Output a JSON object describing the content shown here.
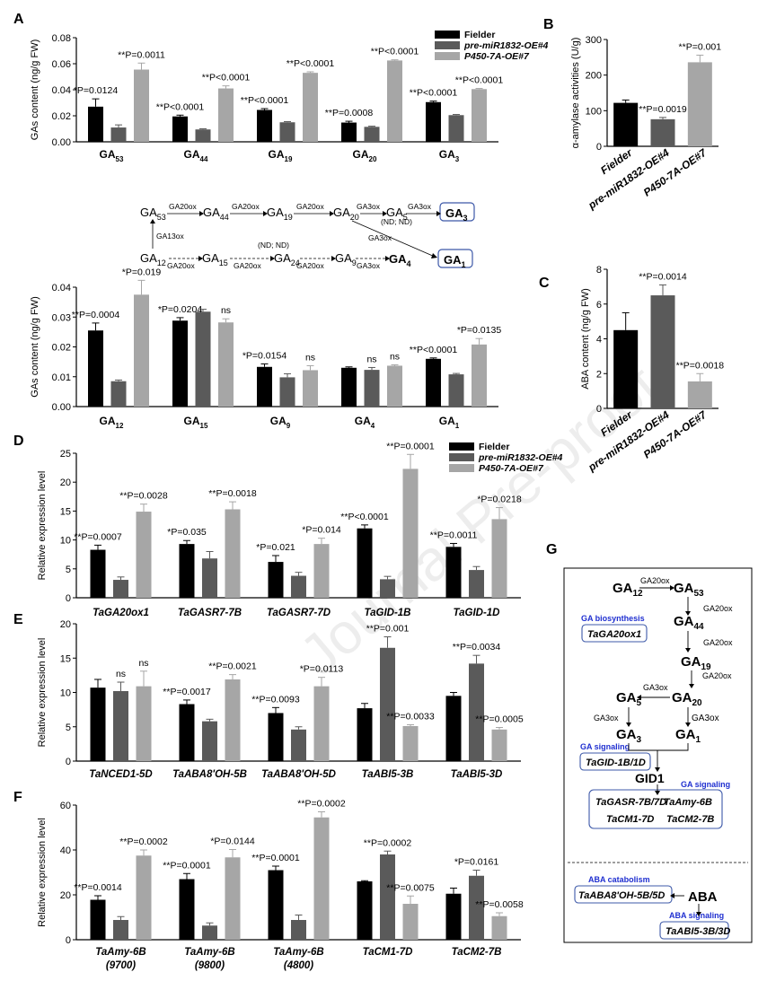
{
  "watermark": "Journal Pre-proof",
  "colors": {
    "fielder": "#000000",
    "mir": "#5a5a5a",
    "p450": "#a6a6a6",
    "abaBox": "#3c58a8",
    "gaText": "#1f2fd0"
  },
  "legend": [
    "Fielder",
    "pre-miR1832-OE#4",
    "P450-7A-OE#7"
  ],
  "chart_data": [
    {
      "id": "A1",
      "panel": "A",
      "type": "bar",
      "title": "",
      "ylabel": "GAs content (ng/g FW)",
      "xlabel": "",
      "ylim": [
        0,
        0.08
      ],
      "yticks": [
        0.0,
        0.02,
        0.04,
        0.06,
        0.08
      ],
      "ytick_labels": [
        "0.00",
        "0.02",
        "0.04",
        "0.06",
        "0.08"
      ],
      "categories": [
        [
          "GA",
          "53"
        ],
        [
          "GA",
          "44"
        ],
        [
          "GA",
          "19"
        ],
        [
          "GA",
          "20"
        ],
        [
          "GA",
          "3"
        ]
      ],
      "series": [
        {
          "name": "Fielder",
          "values": [
            0.027,
            0.0195,
            0.0245,
            0.0148,
            0.0305
          ],
          "errors": [
            0.006,
            0.001,
            0.001,
            0.001,
            0.0008
          ]
        },
        {
          "name": "pre-miR1832-OE#4",
          "values": [
            0.011,
            0.0095,
            0.015,
            0.0115,
            0.0205
          ],
          "errors": [
            0.002,
            0.0005,
            0.0005,
            0.0005,
            0.0005
          ]
        },
        {
          "name": "P450-7A-OE#7",
          "values": [
            0.0555,
            0.041,
            0.053,
            0.0625,
            0.0405
          ],
          "errors": [
            0.005,
            0.002,
            0.0008,
            0.0005,
            0.0005
          ]
        }
      ],
      "annotations": [
        {
          "cat": 0,
          "series": 0,
          "text": "*P=0.0124"
        },
        {
          "cat": 0,
          "series": 2,
          "text": "**P=0.0011"
        },
        {
          "cat": 1,
          "series": 0,
          "text": "**P<0.0001"
        },
        {
          "cat": 1,
          "series": 2,
          "text": "**P<0.0001"
        },
        {
          "cat": 2,
          "series": 0,
          "text": "**P<0.0001"
        },
        {
          "cat": 2,
          "series": 2,
          "text": "**P<0.0001"
        },
        {
          "cat": 3,
          "series": 0,
          "text": "**P=0.0008"
        },
        {
          "cat": 3,
          "series": 2,
          "text": "**P<0.0001"
        },
        {
          "cat": 4,
          "series": 0,
          "text": "**P<0.0001"
        },
        {
          "cat": 4,
          "series": 2,
          "text": "**P<0.0001"
        }
      ]
    },
    {
      "id": "A2",
      "panel": "",
      "type": "bar",
      "title": "",
      "ylabel": "GAs content (ng/g FW)",
      "xlabel": "",
      "ylim": [
        0,
        0.04
      ],
      "yticks": [
        0.0,
        0.01,
        0.02,
        0.03,
        0.04
      ],
      "ytick_labels": [
        "0.00",
        "0.01",
        "0.02",
        "0.03",
        "0.04"
      ],
      "categories": [
        [
          "GA",
          "12"
        ],
        [
          "GA",
          "15"
        ],
        [
          "GA",
          "9"
        ],
        [
          "GA",
          "4"
        ],
        [
          "GA",
          "1"
        ]
      ],
      "series": [
        {
          "name": "Fielder",
          "values": [
            0.0255,
            0.0288,
            0.0133,
            0.013,
            0.016
          ],
          "errors": [
            0.0025,
            0.001,
            0.001,
            0.0003,
            0.0003
          ]
        },
        {
          "name": "pre-miR1832-OE#4",
          "values": [
            0.0085,
            0.0318,
            0.0098,
            0.0123,
            0.0108
          ],
          "errors": [
            0.0004,
            0.0008,
            0.0012,
            0.0008,
            0.0003
          ]
        },
        {
          "name": "P450-7A-OE#7",
          "values": [
            0.0375,
            0.0282,
            0.0122,
            0.0137,
            0.0208
          ],
          "errors": [
            0.0048,
            0.0012,
            0.0015,
            0.0003,
            0.002
          ]
        }
      ],
      "annotations": [
        {
          "cat": 0,
          "series": 0,
          "text": "**P=0.0004"
        },
        {
          "cat": 0,
          "series": 2,
          "text": "*P=0.019"
        },
        {
          "cat": 1,
          "series": 0,
          "text": "*P=0.0204"
        },
        {
          "cat": 1,
          "series": 2,
          "text": "ns"
        },
        {
          "cat": 2,
          "series": 0,
          "text": "*P=0.0154"
        },
        {
          "cat": 2,
          "series": 2,
          "text": "ns"
        },
        {
          "cat": 3,
          "series": 1,
          "text": "ns"
        },
        {
          "cat": 3,
          "series": 2,
          "text": "ns"
        },
        {
          "cat": 4,
          "series": 0,
          "text": "**P<0.0001"
        },
        {
          "cat": 4,
          "series": 2,
          "text": "*P=0.0135"
        }
      ]
    },
    {
      "id": "B",
      "panel": "B",
      "type": "bar",
      "title": "",
      "ylabel": "α-amylase activities (U/g)",
      "xlabel": "",
      "ylim": [
        0,
        300
      ],
      "yticks": [
        0,
        100,
        200,
        300
      ],
      "ytick_labels": [
        "0",
        "100",
        "200",
        "300"
      ],
      "categories": [
        [
          "Fielder",
          ""
        ],
        [
          "pre-miR1832-OE#4",
          ""
        ],
        [
          "P450-7A-OE#7",
          ""
        ]
      ],
      "series": [
        {
          "name": "values",
          "values": [
            122,
            76,
            236
          ],
          "errors": [
            8,
            5,
            20
          ]
        }
      ],
      "annotations": [
        {
          "cat": 1,
          "series": 0,
          "text": "**P=0.0019"
        },
        {
          "cat": 2,
          "series": 0,
          "text": "**P=0.001"
        }
      ]
    },
    {
      "id": "C",
      "panel": "C",
      "type": "bar",
      "title": "",
      "ylabel": "ABA content (ng/g FW)",
      "xlabel": "",
      "ylim": [
        0,
        8
      ],
      "yticks": [
        0,
        2,
        4,
        6,
        8
      ],
      "ytick_labels": [
        "0",
        "2",
        "4",
        "6",
        "8"
      ],
      "categories": [
        [
          "Fielder",
          ""
        ],
        [
          "pre-miR1832-OE#4",
          ""
        ],
        [
          "P450-7A-OE#7",
          ""
        ]
      ],
      "series": [
        {
          "name": "values",
          "values": [
            4.5,
            6.5,
            1.55
          ],
          "errors": [
            1.0,
            0.6,
            0.45
          ]
        }
      ],
      "annotations": [
        {
          "cat": 1,
          "series": 0,
          "text": "**P=0.0014"
        },
        {
          "cat": 2,
          "series": 0,
          "text": "**P=0.0018"
        }
      ]
    },
    {
      "id": "D",
      "panel": "D",
      "type": "bar",
      "title": "",
      "ylabel": "Relative expression level",
      "xlabel": "",
      "ylim": [
        0,
        25
      ],
      "yticks": [
        0,
        5,
        10,
        15,
        20,
        25
      ],
      "ytick_labels": [
        "0",
        "5",
        "10",
        "15",
        "20",
        "25"
      ],
      "categories": [
        [
          "TaGA20ox1",
          ""
        ],
        [
          "TaGASR7-7B",
          ""
        ],
        [
          "TaGASR7-7D",
          ""
        ],
        [
          "TaGID-1B",
          ""
        ],
        [
          "TaGID-1D",
          ""
        ]
      ],
      "series": [
        {
          "name": "Fielder",
          "values": [
            8.3,
            9.3,
            6.2,
            12.0,
            8.8
          ],
          "errors": [
            0.8,
            0.6,
            1.1,
            0.6,
            0.6
          ]
        },
        {
          "name": "pre-miR1832-OE#4",
          "values": [
            3.1,
            6.8,
            3.8,
            3.2,
            4.8
          ],
          "errors": [
            0.5,
            1.2,
            0.6,
            0.5,
            0.6
          ]
        },
        {
          "name": "P450-7A-OE#7",
          "values": [
            14.9,
            15.3,
            9.3,
            22.3,
            13.6
          ],
          "errors": [
            1.3,
            1.3,
            1.0,
            2.5,
            2.0
          ]
        }
      ],
      "annotations": [
        {
          "cat": 0,
          "series": 0,
          "text": "**P=0.0007"
        },
        {
          "cat": 0,
          "series": 2,
          "text": "**P=0.0028"
        },
        {
          "cat": 1,
          "series": 0,
          "text": "*P=0.035"
        },
        {
          "cat": 1,
          "series": 2,
          "text": "**P=0.0018"
        },
        {
          "cat": 2,
          "series": 0,
          "text": "*P=0.021"
        },
        {
          "cat": 2,
          "series": 2,
          "text": "*P=0.014"
        },
        {
          "cat": 3,
          "series": 0,
          "text": "**P<0.0001"
        },
        {
          "cat": 3,
          "series": 2,
          "text": "**P=0.0001"
        },
        {
          "cat": 4,
          "series": 0,
          "text": "**P=0.0011"
        },
        {
          "cat": 4,
          "series": 2,
          "text": "*P=0.0218"
        }
      ]
    },
    {
      "id": "E",
      "panel": "E",
      "type": "bar",
      "title": "",
      "ylabel": "Relative expression level",
      "xlabel": "",
      "ylim": [
        0,
        20
      ],
      "yticks": [
        0,
        5,
        10,
        15,
        20
      ],
      "ytick_labels": [
        "0",
        "5",
        "10",
        "15",
        "20"
      ],
      "categories": [
        [
          "TaNCED1-5D",
          ""
        ],
        [
          "TaABA8'OH-5B",
          ""
        ],
        [
          "TaABA8'OH-5D",
          ""
        ],
        [
          "TaABI5-3B",
          ""
        ],
        [
          "TaABI5-3D",
          ""
        ]
      ],
      "series": [
        {
          "name": "Fielder",
          "values": [
            10.7,
            8.3,
            7.0,
            7.7,
            9.5
          ],
          "errors": [
            1.2,
            0.6,
            0.8,
            0.7,
            0.5
          ]
        },
        {
          "name": "pre-miR1832-OE#4",
          "values": [
            10.2,
            5.8,
            4.6,
            16.5,
            14.2
          ],
          "errors": [
            1.3,
            0.3,
            0.4,
            1.6,
            1.2
          ]
        },
        {
          "name": "P450-7A-OE#7",
          "values": [
            10.9,
            11.9,
            10.9,
            5.1,
            4.6
          ],
          "errors": [
            2.2,
            0.7,
            1.3,
            0.2,
            0.3
          ]
        }
      ],
      "annotations": [
        {
          "cat": 0,
          "series": 1,
          "text": "ns"
        },
        {
          "cat": 0,
          "series": 2,
          "text": "ns"
        },
        {
          "cat": 1,
          "series": 0,
          "text": "**P=0.0017"
        },
        {
          "cat": 1,
          "series": 2,
          "text": "**P=0.0021"
        },
        {
          "cat": 2,
          "series": 0,
          "text": "**P=0.0093"
        },
        {
          "cat": 2,
          "series": 2,
          "text": "*P=0.0113"
        },
        {
          "cat": 3,
          "series": 1,
          "text": "**P=0.001"
        },
        {
          "cat": 3,
          "series": 2,
          "text": "**P=0.0033"
        },
        {
          "cat": 4,
          "series": 1,
          "text": "**P=0.0034"
        },
        {
          "cat": 4,
          "series": 2,
          "text": "**P=0.0005"
        }
      ]
    },
    {
      "id": "F",
      "panel": "F",
      "type": "bar",
      "title": "",
      "ylabel": "Relative expression level",
      "xlabel": "",
      "ylim": [
        0,
        60
      ],
      "yticks": [
        0,
        20,
        40,
        60
      ],
      "ytick_labels": [
        "0",
        "20",
        "40",
        "60"
      ],
      "categories": [
        [
          "TaAmy-6B",
          "(9700)"
        ],
        [
          "TaAmy-6B",
          "(9800)"
        ],
        [
          "TaAmy-6B",
          "(4800)"
        ],
        [
          "TaCM1-7D",
          ""
        ],
        [
          "TaCM2-7B",
          ""
        ]
      ],
      "series": [
        {
          "name": "Fielder",
          "values": [
            17.8,
            27.0,
            31.0,
            26.0,
            20.5
          ],
          "errors": [
            1.8,
            2.5,
            1.8,
            0.3,
            2.5
          ]
        },
        {
          "name": "pre-miR1832-OE#4",
          "values": [
            8.8,
            6.3,
            8.8,
            38.0,
            28.5
          ],
          "errors": [
            1.5,
            1.2,
            2.2,
            1.5,
            2.5
          ]
        },
        {
          "name": "P450-7A-OE#7",
          "values": [
            37.5,
            36.7,
            54.5,
            16.0,
            10.5
          ],
          "errors": [
            2.5,
            3.5,
            2.5,
            3.5,
            1.5
          ]
        }
      ],
      "annotations": [
        {
          "cat": 0,
          "series": 0,
          "text": "**P=0.0014"
        },
        {
          "cat": 0,
          "series": 2,
          "text": "**P=0.0002"
        },
        {
          "cat": 1,
          "series": 0,
          "text": "**P=0.0001"
        },
        {
          "cat": 1,
          "series": 2,
          "text": "*P=0.0144"
        },
        {
          "cat": 2,
          "series": 0,
          "text": "**P=0.0001"
        },
        {
          "cat": 2,
          "series": 2,
          "text": "**P=0.0002"
        },
        {
          "cat": 3,
          "series": 1,
          "text": "**P=0.0002"
        },
        {
          "cat": 3,
          "series": 2,
          "text": "**P=0.0075"
        },
        {
          "cat": 4,
          "series": 1,
          "text": "*P=0.0161"
        },
        {
          "cat": 4,
          "series": 2,
          "text": "**P=0.0058"
        }
      ]
    }
  ],
  "pathway": {
    "ga53": "53",
    "ga44": "44",
    "ga19": "19",
    "ga20": "20",
    "ga5": "5",
    "ga12": "12",
    "ga15": "15",
    "ga24": "24",
    "ga9": "9",
    "ga": "GA",
    "ga3": "GA",
    "ga3sub": "3",
    "ga4": "GA",
    "ga4sub": "4",
    "ga1": "GA",
    "ga1sub": "1",
    "ga20ox": "GA20ox",
    "ga3ox": "GA3ox",
    "ga13ox": "GA13ox",
    "ndnd": "(ND; ND)"
  },
  "panelG": {
    "label": "G",
    "ga20ox": "GA20ox",
    "ga3ox": "GA3ox",
    "ga_biosynthesis": "GA biosynthesis",
    "taga20ox1": "TaGA20ox1",
    "ga_signaling": "GA signaling",
    "tagid": "TaGID-1B/1D",
    "gid1": "GID1",
    "ga_signaling2": "GA signaling",
    "targets1a": "TaGASR-7B/7D",
    "targets1b": "TaAmy-6B",
    "targets2a": "TaCM1-7D",
    "targets2b": "TaCM2-7B",
    "aba_catabolism": "ABA catabolism",
    "taaba8": "TaABA8'OH-5B/5D",
    "aba": "ABA",
    "aba_signaling": "ABA signaling",
    "taabi5": "TaABI5-3B/3D"
  }
}
